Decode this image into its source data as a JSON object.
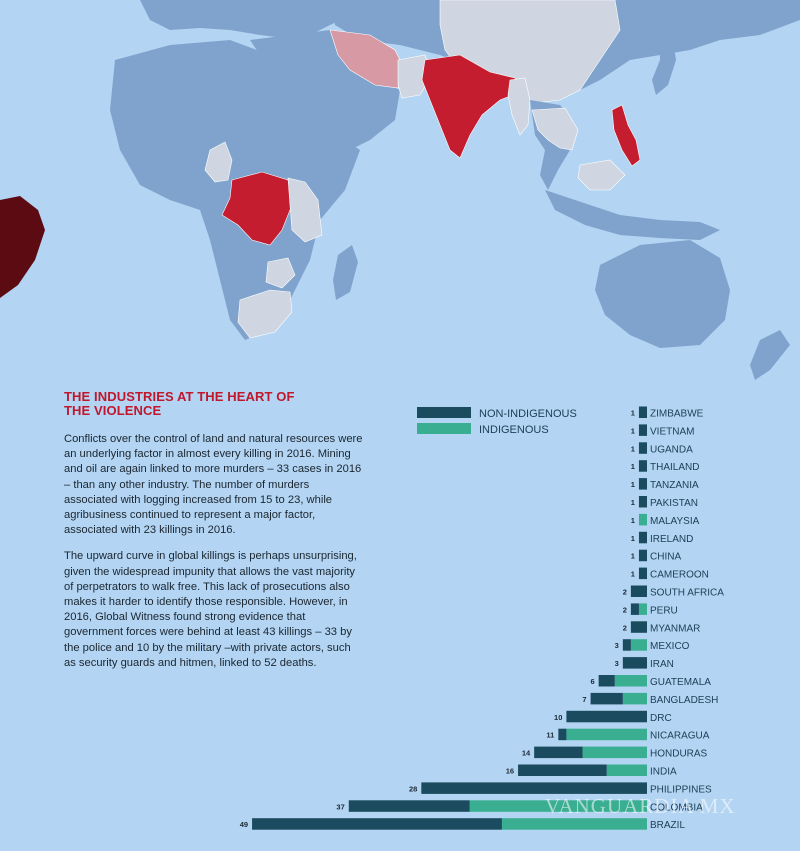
{
  "article": {
    "heading": "THE INDUSTRIES AT THE HEART OF THE VIOLENCE",
    "paragraphs": [
      "Conflicts over the control of land and natural resources were an underlying factor in almost every killing in 2016. Mining and oil are again linked to more murders – 33 cases in 2016 – than any other industry. The number of murders associated with logging increased from 15 to 23, while agribusiness continued to represent a major factor, associated with 23 killings in 2016.",
      "The upward curve in global killings is perhaps unsurprising, given the widespread impunity that allows the vast majority of perpetrators to walk free. This lack of prosecutions also makes it harder to identify those responsible. However, in 2016, Global Witness found strong evidence that government forces were behind at least 43 killings – 33 by the police and 10 by the military –with private actors, such as security guards and hitmen, linked to 52 deaths."
    ]
  },
  "watermark": "VANGUARDIA MX",
  "colors": {
    "non_indigenous": "#1b4b5f",
    "indigenous": "#3aae91",
    "ocean": "#b3d4f2",
    "land": "#7fa3cc",
    "highlight_red": "#c41d2f",
    "light_country": "#cfd6e2",
    "pink_country": "#d79aa5"
  },
  "chart_data": {
    "type": "bar",
    "orientation": "horizontal",
    "stacked": true,
    "legend": [
      "NON-INDIGENOUS",
      "INDIGENOUS"
    ],
    "legend_placement": "top-left",
    "categories": [
      "ZIMBABWE",
      "VIETNAM",
      "UGANDA",
      "THAILAND",
      "TANZANIA",
      "PAKISTAN",
      "MALAYSIA",
      "IRELAND",
      "CHINA",
      "CAMEROON",
      "SOUTH AFRICA",
      "PERU",
      "MYANMAR",
      "MEXICO",
      "IRAN",
      "GUATEMALA",
      "BANGLADESH",
      "DRC",
      "NICARAGUA",
      "HONDURAS",
      "INDIA",
      "PHILIPPINES",
      "COLOMBIA",
      "BRAZIL"
    ],
    "totals": [
      1,
      1,
      1,
      1,
      1,
      1,
      1,
      1,
      1,
      1,
      2,
      2,
      2,
      3,
      3,
      6,
      7,
      10,
      11,
      14,
      16,
      28,
      37,
      49
    ],
    "series": [
      {
        "name": "NON-INDIGENOUS",
        "values": [
          1,
          1,
          1,
          1,
          1,
          1,
          0,
          1,
          1,
          1,
          2,
          1,
          2,
          1,
          3,
          2,
          4,
          10,
          1,
          6,
          11,
          28,
          15,
          31
        ]
      },
      {
        "name": "INDIGENOUS",
        "values": [
          0,
          0,
          0,
          0,
          0,
          0,
          1,
          0,
          0,
          0,
          0,
          1,
          0,
          2,
          0,
          4,
          3,
          0,
          10,
          8,
          5,
          0,
          22,
          18
        ]
      }
    ]
  }
}
